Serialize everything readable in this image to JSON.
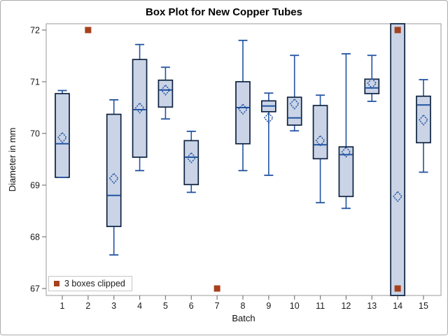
{
  "colors": {
    "box_fill": "#cad4e6",
    "box_border": "#0d2240",
    "line": "#2253a2",
    "clipped_marker": "#a6411c",
    "frame": "#ababab",
    "tick": "#7a7a7a",
    "text": "#1a1a1a"
  },
  "chart_data": {
    "type": "box",
    "title": "Box Plot for New Copper Tubes",
    "xlabel": "Batch",
    "ylabel": "Diameter in mm",
    "ylim": [
      67,
      72
    ],
    "yticks": [
      67,
      68,
      69,
      70,
      71,
      72
    ],
    "categories": [
      1,
      2,
      3,
      4,
      5,
      6,
      7,
      8,
      9,
      10,
      11,
      12,
      13,
      14,
      15
    ],
    "legend": "3 boxes clipped",
    "legend_position": "bottom-left-inside",
    "grid": false,
    "boxes": [
      {
        "batch": 1,
        "low": 69.15,
        "q1": 69.15,
        "median": 69.8,
        "q3": 70.77,
        "high": 70.83,
        "mean": 69.92,
        "clipped": null
      },
      {
        "batch": 2,
        "low": null,
        "q1": null,
        "median": null,
        "q3": null,
        "high": null,
        "mean": null,
        "clipped": "top"
      },
      {
        "batch": 3,
        "low": 67.65,
        "q1": 68.2,
        "median": 68.8,
        "q3": 70.37,
        "high": 70.65,
        "mean": 69.13,
        "clipped": null
      },
      {
        "batch": 4,
        "low": 69.28,
        "q1": 69.54,
        "median": 70.46,
        "q3": 71.43,
        "high": 71.72,
        "mean": 70.49,
        "clipped": null
      },
      {
        "batch": 5,
        "low": 70.28,
        "q1": 70.51,
        "median": 70.84,
        "q3": 71.03,
        "high": 71.28,
        "mean": 70.84,
        "clipped": null
      },
      {
        "batch": 6,
        "low": 68.86,
        "q1": 69.01,
        "median": 69.54,
        "q3": 69.86,
        "high": 70.04,
        "mean": 69.53,
        "clipped": null
      },
      {
        "batch": 7,
        "low": null,
        "q1": null,
        "median": null,
        "q3": null,
        "high": null,
        "mean": null,
        "clipped": "bottom"
      },
      {
        "batch": 8,
        "low": 69.28,
        "q1": 69.8,
        "median": 70.5,
        "q3": 71.0,
        "high": 71.8,
        "mean": 70.47,
        "clipped": null
      },
      {
        "batch": 9,
        "low": 69.19,
        "q1": 70.42,
        "median": 70.53,
        "q3": 70.63,
        "high": 70.78,
        "mean": 70.3,
        "clipped": null
      },
      {
        "batch": 10,
        "low": 70.05,
        "q1": 70.16,
        "median": 70.3,
        "q3": 70.7,
        "high": 71.51,
        "mean": 70.57,
        "clipped": null
      },
      {
        "batch": 11,
        "low": 68.66,
        "q1": 69.51,
        "median": 69.78,
        "q3": 70.54,
        "high": 70.74,
        "mean": 69.86,
        "clipped": null
      },
      {
        "batch": 12,
        "low": 68.55,
        "q1": 68.78,
        "median": 69.59,
        "q3": 69.74,
        "high": 71.54,
        "mean": 69.64,
        "clipped": null
      },
      {
        "batch": 13,
        "low": 70.62,
        "q1": 70.77,
        "median": 70.88,
        "q3": 71.05,
        "high": 71.51,
        "mean": 70.97,
        "clipped": null
      },
      {
        "batch": 14,
        "low": null,
        "q1": null,
        "median": null,
        "q3": null,
        "high": null,
        "mean": 68.78,
        "clipped": "both"
      },
      {
        "batch": 15,
        "low": 69.25,
        "q1": 69.82,
        "median": 70.55,
        "q3": 70.72,
        "high": 71.04,
        "mean": 70.26,
        "clipped": null
      }
    ],
    "clip_markers": [
      {
        "batch": 2,
        "value": 72
      },
      {
        "batch": 7,
        "value": 67
      },
      {
        "batch": 14,
        "value": 72
      },
      {
        "batch": 14,
        "value": 67
      }
    ]
  }
}
